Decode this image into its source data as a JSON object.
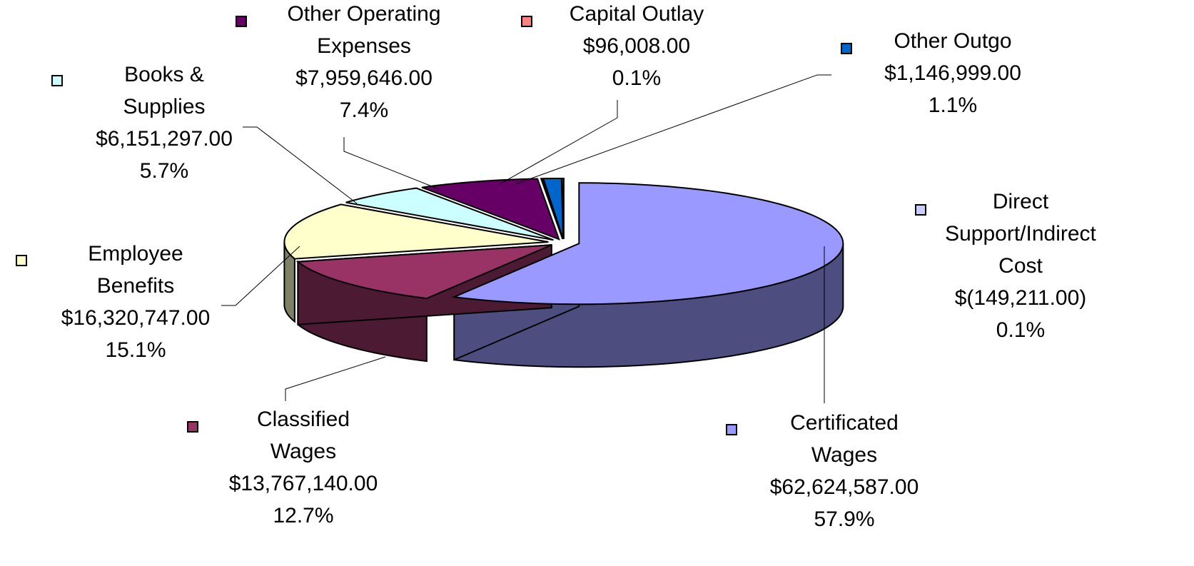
{
  "chart_data": {
    "type": "pie",
    "categories": [
      "Certificated Wages",
      "Classified Wages",
      "Employee Benefits",
      "Books & Supplies",
      "Other Operating Expenses",
      "Capital Outlay",
      "Other Outgo",
      "Direct Support/Indirect Cost"
    ],
    "values": [
      62624587,
      13767140,
      16320747,
      6151297,
      7959646,
      96008,
      1146999,
      -149211
    ],
    "value_labels": [
      "$62,624,587.00",
      "$13,767,140.00",
      "$16,320,747.00",
      "$6,151,297.00",
      "$7,959,646.00",
      "$96,008.00",
      "$1,146,999.00",
      "$(149,211.00)"
    ],
    "percents": [
      57.9,
      12.7,
      15.1,
      5.7,
      7.4,
      0.1,
      1.1,
      0.1
    ],
    "percent_labels": [
      "57.9%",
      "12.7%",
      "15.1%",
      "5.7%",
      "7.4%",
      "0.1%",
      "1.1%",
      "0.1%"
    ],
    "colors": [
      "#9999ff",
      "#993366",
      "#ffffcc",
      "#ccffff",
      "#660066",
      "#ff8080",
      "#0066cc",
      "#ccccff"
    ]
  }
}
